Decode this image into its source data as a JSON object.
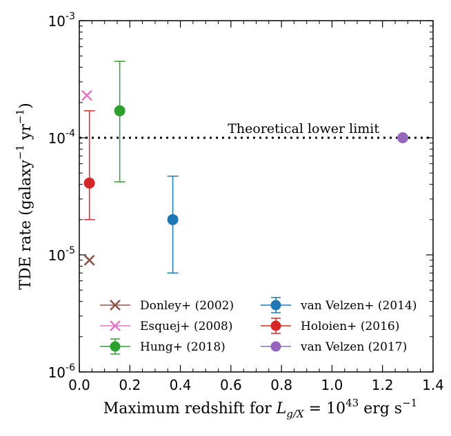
{
  "chart_data": {
    "type": "scatter",
    "xlabel": {
      "prefix": "Maximum redshift for ",
      "var": "L",
      "sub": "g/X",
      "eq": " = 10",
      "exp": "43",
      "unit": " erg s",
      "unit_exp": "−1"
    },
    "ylabel": {
      "prefix": "TDE rate (galaxy",
      "exp1": "−1",
      "mid": " yr",
      "exp2": "−1",
      "suffix": ")"
    },
    "xlim": [
      0.0,
      1.4
    ],
    "ylim": [
      1e-06,
      0.001
    ],
    "yscale": "log",
    "x_ticks": [
      {
        "value": 0.0,
        "label": "0.0"
      },
      {
        "value": 0.2,
        "label": "0.2"
      },
      {
        "value": 0.4,
        "label": "0.4"
      },
      {
        "value": 0.6,
        "label": "0.6"
      },
      {
        "value": 0.8,
        "label": "0.8"
      },
      {
        "value": 1.0,
        "label": "1.0"
      },
      {
        "value": 1.2,
        "label": "1.2"
      },
      {
        "value": 1.4,
        "label": "1.4"
      }
    ],
    "y_ticks": [
      {
        "value": 1e-06,
        "base": "10",
        "exp": "-6"
      },
      {
        "value": 1e-05,
        "base": "10",
        "exp": "-5"
      },
      {
        "value": 0.0001,
        "base": "10",
        "exp": "-4"
      },
      {
        "value": 0.001,
        "base": "10",
        "exp": "-3"
      }
    ],
    "reference_line": {
      "y": 0.0001,
      "label": "Theoretical lower limit",
      "style": "dotted"
    },
    "series": [
      {
        "name": "Donley+ (2002)",
        "marker": "x",
        "color": "#8c564b",
        "x": 0.04,
        "y": 9e-06
      },
      {
        "name": "Esquej+ (2008)",
        "marker": "x",
        "color": "#e377c2",
        "x": 0.03,
        "y": 0.00023
      },
      {
        "name": "Hung+ (2018)",
        "marker": "o",
        "color": "#2ca02c",
        "x": 0.16,
        "y": 0.00017,
        "y_low": 4.2e-05,
        "y_high": 0.00045
      },
      {
        "name": "van Velzen+ (2014)",
        "marker": "o",
        "color": "#1f77b4",
        "x": 0.37,
        "y": 2e-05,
        "y_low": 7e-06,
        "y_high": 4.7e-05
      },
      {
        "name": "Holoien+ (2016)",
        "marker": "o",
        "color": "#d62728",
        "x": 0.04,
        "y": 4.1e-05,
        "y_low": 2e-05,
        "y_high": 0.00017
      },
      {
        "name": "van Velzen (2017)",
        "marker": "o",
        "color": "#9467bd",
        "x": 1.28,
        "y": 0.0001
      }
    ],
    "legend": {
      "placement": "lower-center",
      "columns": 2,
      "order": [
        [
          0,
          1,
          2
        ],
        [
          3,
          4,
          5
        ]
      ]
    },
    "grid": false
  }
}
